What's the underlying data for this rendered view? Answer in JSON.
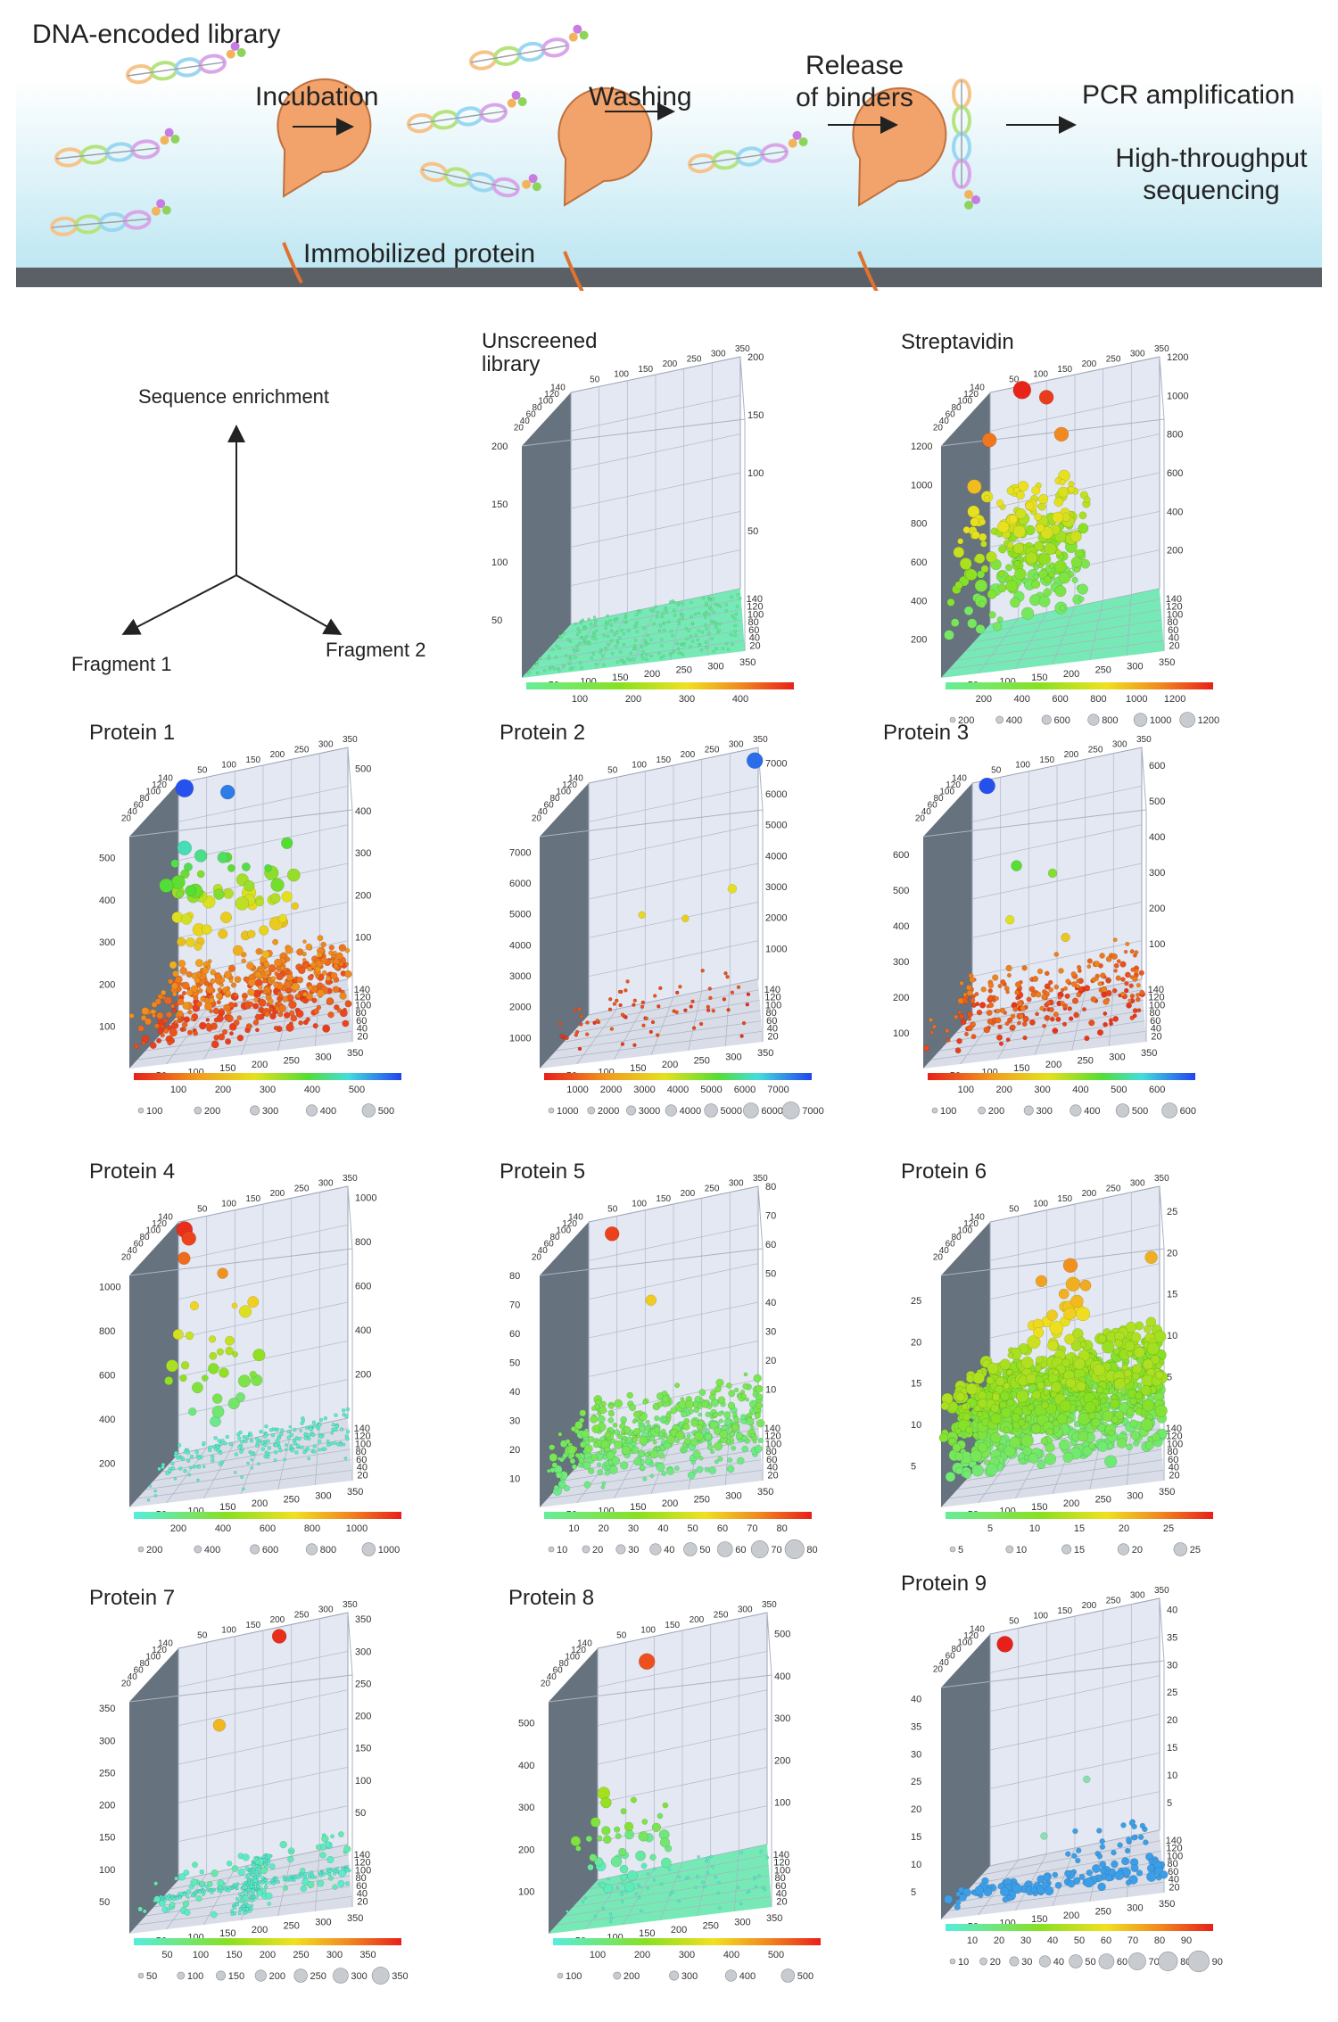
{
  "workflow": {
    "title": "DNA-encoded library",
    "steps": {
      "incubation": "Incubation",
      "washing": "Washing",
      "release": "Release of binders",
      "pcr": "PCR amplification",
      "sequencing": "High-throughput sequencing"
    },
    "immobilized_label": "Immobilized protein"
  },
  "axes_legend": {
    "z_label": "Sequence enrichment",
    "x_label": "Fragment 1",
    "y_label": "Fragment 2"
  },
  "panels": [
    {
      "title": "Unscreened library",
      "zmax": 200,
      "zticks": [
        "50",
        "100",
        "150",
        "200"
      ],
      "cbar_ticks": [
        "100",
        "200",
        "300",
        "400"
      ],
      "cbar": "green-red",
      "sizes": [],
      "points": "flat"
    },
    {
      "title": "Streptavidin",
      "zmax": 1200,
      "zticks": [
        "200",
        "400",
        "600",
        "800",
        "1000",
        "1200"
      ],
      "cbar_ticks": [
        "200",
        "400",
        "600",
        "800",
        "1000",
        "1200"
      ],
      "cbar": "green-red",
      "sizes": [
        "200",
        "400",
        "600",
        "800",
        "1000",
        "1200"
      ],
      "points": "strep"
    },
    {
      "title": "Protein 1",
      "zmax": 550,
      "zticks": [
        "100",
        "200",
        "300",
        "400",
        "500"
      ],
      "cbar_ticks": [
        "100",
        "200",
        "300",
        "400",
        "500"
      ],
      "cbar": "red-blue",
      "sizes": [
        "100",
        "200",
        "300",
        "400",
        "500"
      ],
      "points": "p1"
    },
    {
      "title": "Protein 2",
      "zmax": 7500,
      "zticks": [
        "1000",
        "2000",
        "3000",
        "4000",
        "5000",
        "6000",
        "7000"
      ],
      "cbar_ticks": [
        "1000",
        "2000",
        "3000",
        "4000",
        "5000",
        "6000",
        "7000"
      ],
      "cbar": "red-blue",
      "sizes": [
        "1000",
        "2000",
        "3000",
        "4000",
        "5000",
        "6000",
        "7000"
      ],
      "points": "p2"
    },
    {
      "title": "Protein 3",
      "zmax": 650,
      "zticks": [
        "100",
        "200",
        "300",
        "400",
        "500",
        "600"
      ],
      "cbar_ticks": [
        "100",
        "200",
        "300",
        "400",
        "500",
        "600"
      ],
      "cbar": "red-blue",
      "sizes": [
        "100",
        "200",
        "300",
        "400",
        "500",
        "600"
      ],
      "points": "p3"
    },
    {
      "title": "Protein 4",
      "zmax": 1050,
      "zticks": [
        "200",
        "400",
        "600",
        "800",
        "1000"
      ],
      "cbar_ticks": [
        "200",
        "400",
        "600",
        "800",
        "1000"
      ],
      "cbar": "cyan-red",
      "sizes": [
        "200",
        "400",
        "600",
        "800",
        "1000"
      ],
      "points": "p4"
    },
    {
      "title": "Protein 5",
      "zmax": 80,
      "zticks": [
        "10",
        "20",
        "30",
        "40",
        "50",
        "60",
        "70",
        "80"
      ],
      "cbar_ticks": [
        "10",
        "20",
        "30",
        "40",
        "50",
        "60",
        "70",
        "80"
      ],
      "cbar": "green-red",
      "sizes": [
        "10",
        "20",
        "30",
        "40",
        "50",
        "60",
        "70",
        "80"
      ],
      "points": "p5"
    },
    {
      "title": "Protein 6",
      "zmax": 28,
      "zticks": [
        "5",
        "10",
        "15",
        "20",
        "25"
      ],
      "cbar_ticks": [
        "5",
        "10",
        "15",
        "20",
        "25"
      ],
      "cbar": "green-red",
      "sizes": [
        "5",
        "10",
        "15",
        "20",
        "25"
      ],
      "points": "p6"
    },
    {
      "title": "Protein 7",
      "zmax": 360,
      "zticks": [
        "50",
        "100",
        "150",
        "200",
        "250",
        "300",
        "350"
      ],
      "cbar_ticks": [
        "50",
        "100",
        "150",
        "200",
        "250",
        "300",
        "350"
      ],
      "cbar": "cyan-red",
      "sizes": [
        "50",
        "100",
        "150",
        "200",
        "250",
        "300",
        "350"
      ],
      "points": "p7"
    },
    {
      "title": "Protein 8",
      "zmax": 550,
      "zticks": [
        "100",
        "200",
        "300",
        "400",
        "500"
      ],
      "cbar_ticks": [
        "100",
        "200",
        "300",
        "400",
        "500"
      ],
      "cbar": "cyan-red",
      "sizes": [
        "100",
        "200",
        "300",
        "400",
        "500"
      ],
      "points": "p8"
    },
    {
      "title": "Protein 9",
      "zmax": 42,
      "zticks": [
        "5",
        "10",
        "15",
        "20",
        "25",
        "30",
        "35",
        "40"
      ],
      "cbar_ticks": [
        "10",
        "20",
        "30",
        "40",
        "50",
        "60",
        "70",
        "80",
        "90"
      ],
      "cbar": "cyan-red",
      "sizes": [
        "10",
        "20",
        "30",
        "40",
        "50",
        "60",
        "70",
        "80",
        "90"
      ],
      "points": "p9"
    }
  ],
  "frag1_ticks": [
    "20",
    "40",
    "60",
    "80",
    "100",
    "120",
    "140"
  ],
  "frag2_ticks": [
    "50",
    "100",
    "150",
    "200",
    "250",
    "300",
    "350"
  ],
  "colors": {
    "wall_dark": "#5f6a78",
    "wall_light": "#e4e8f2",
    "floor": "#c9cfdd",
    "floor_flat": "#6fe8b2",
    "workflow_bg_top": "#ffffff",
    "workflow_bg_bottom": "#bfe7f2",
    "workflow_floor": "#5b5f66",
    "protein": "#f2a36b"
  }
}
